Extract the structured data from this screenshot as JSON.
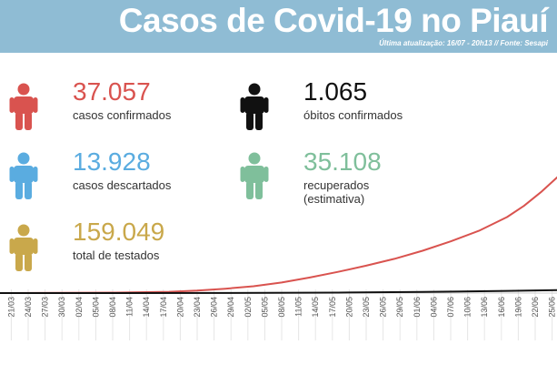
{
  "header": {
    "title": "Casos de Covid-19 no Piauí",
    "subtitle": "Última atualização: 16/07 - 20h13 // Fonte: Sesapi",
    "background_color": "#8fbcd4"
  },
  "stats": [
    {
      "value": "37.057",
      "label": "casos confirmados",
      "label2": "",
      "color": "#d9534f",
      "icon": "person-icon"
    },
    {
      "value": "1.065",
      "label": "óbitos confirmados",
      "label2": "",
      "color": "#111111",
      "icon": "person-icon"
    },
    {
      "value": "13.928",
      "label": "casos descartados",
      "label2": "",
      "color": "#5aace0",
      "icon": "person-icon"
    },
    {
      "value": "35.108",
      "label": "recuperados",
      "label2": "(estimativa)",
      "color": "#7fbf9b",
      "icon": "person-icon"
    },
    {
      "value": "159.049",
      "label": "total de testados",
      "label2": "",
      "color": "#c9a84b",
      "icon": "person-icon"
    }
  ],
  "chart_data": {
    "type": "line",
    "title": "",
    "xlabel": "",
    "ylabel": "",
    "grid": "vertical",
    "x_ticks": [
      "21/03",
      "24/03",
      "27/03",
      "30/03",
      "02/04",
      "05/04",
      "08/04",
      "11/04",
      "14/04",
      "17/04",
      "20/04",
      "23/04",
      "26/04",
      "29/04",
      "02/05",
      "05/05",
      "08/05",
      "11/05",
      "14/05",
      "17/05",
      "20/05",
      "23/05",
      "26/05",
      "29/05",
      "01/06",
      "04/06",
      "07/06",
      "10/06",
      "13/06",
      "16/06",
      "19/06",
      "22/06",
      "25/06"
    ],
    "ylim": [
      0,
      38000
    ],
    "series": [
      {
        "name": "casos confirmados",
        "color": "#d9534f",
        "x": [
          "19/03",
          "29/03",
          "08/04",
          "18/04",
          "23/04",
          "28/04",
          "03/05",
          "08/05",
          "13/05",
          "18/05",
          "23/05",
          "28/05",
          "02/06",
          "07/06",
          "12/06",
          "17/06",
          "20/06",
          "23/06",
          "27/06"
        ],
        "values": [
          0,
          30,
          80,
          200,
          400,
          700,
          1100,
          1700,
          2500,
          3400,
          4400,
          5500,
          6800,
          8300,
          10000,
          12200,
          14000,
          16200,
          19500
        ]
      },
      {
        "name": "óbitos confirmados",
        "color": "#111111",
        "x": [
          "19/03",
          "08/04",
          "28/04",
          "18/05",
          "02/06",
          "17/06",
          "27/06"
        ],
        "values": [
          0,
          2,
          20,
          80,
          180,
          350,
          500
        ]
      }
    ]
  }
}
